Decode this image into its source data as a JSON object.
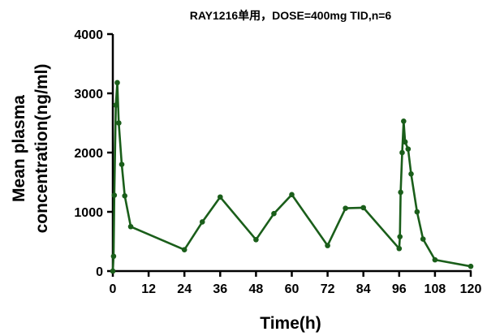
{
  "chart_data": {
    "type": "line",
    "title": "RAY1216单用，DOSE=400mg TID,n=6",
    "xlabel": "Time(h)",
    "ylabel_lines": [
      "Mean plasma",
      "concentration(ng/ml)"
    ],
    "xlim": [
      0,
      120
    ],
    "ylim": [
      0,
      4000
    ],
    "x_ticks": [
      0,
      12,
      24,
      36,
      48,
      60,
      72,
      84,
      96,
      108,
      120
    ],
    "y_ticks": [
      0,
      1000,
      2000,
      3000,
      4000
    ],
    "series_color": "#1a5e1a",
    "grid": false,
    "legend": "none",
    "series": [
      {
        "x": [
          0,
          0.25,
          0.5,
          1,
          1.5,
          2,
          3,
          4,
          6,
          24,
          30,
          36,
          48,
          54,
          60,
          72,
          78,
          84,
          96,
          96.25,
          96.5,
          97,
          97.5,
          98,
          99,
          100,
          102,
          104,
          108,
          120
        ],
        "y": [
          0,
          250,
          1280,
          2800,
          3180,
          2500,
          1800,
          1270,
          750,
          360,
          830,
          1250,
          530,
          970,
          1290,
          430,
          1060,
          1070,
          380,
          580,
          1330,
          2000,
          2530,
          2180,
          2060,
          1640,
          1000,
          540,
          190,
          80
        ]
      }
    ]
  }
}
